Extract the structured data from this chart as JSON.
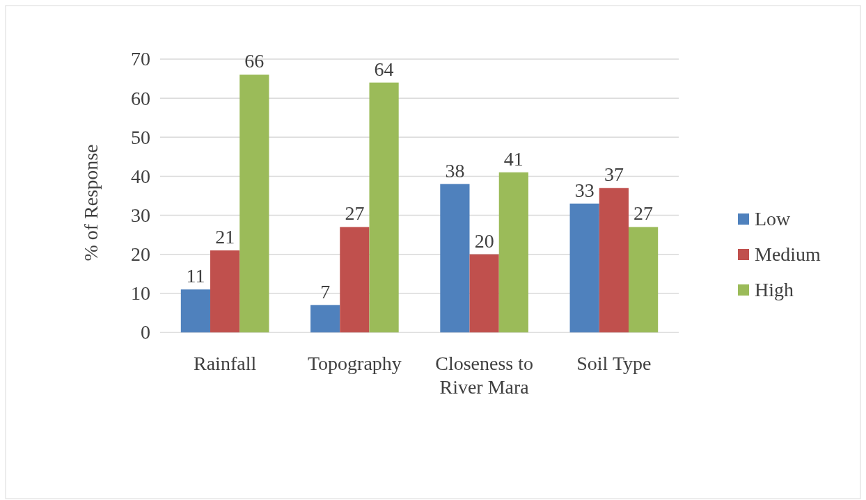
{
  "chart_data": {
    "type": "bar",
    "ylabel": "% of Response",
    "categories": [
      "Rainfall",
      "Topography",
      "Closeness to River Mara",
      "Soil Type"
    ],
    "series": [
      {
        "name": "Low",
        "color": "#4f81bd",
        "values": [
          11,
          7,
          38,
          33
        ]
      },
      {
        "name": "Medium",
        "color": "#c0504d",
        "values": [
          21,
          27,
          20,
          37
        ]
      },
      {
        "name": "High",
        "color": "#9bbb59",
        "values": [
          66,
          64,
          41,
          27
        ]
      }
    ],
    "ylim": [
      0,
      70
    ],
    "yticks": [
      0,
      10,
      20,
      30,
      40,
      50,
      60,
      70
    ],
    "grid": "y",
    "legend": "right",
    "data_labels": true
  }
}
